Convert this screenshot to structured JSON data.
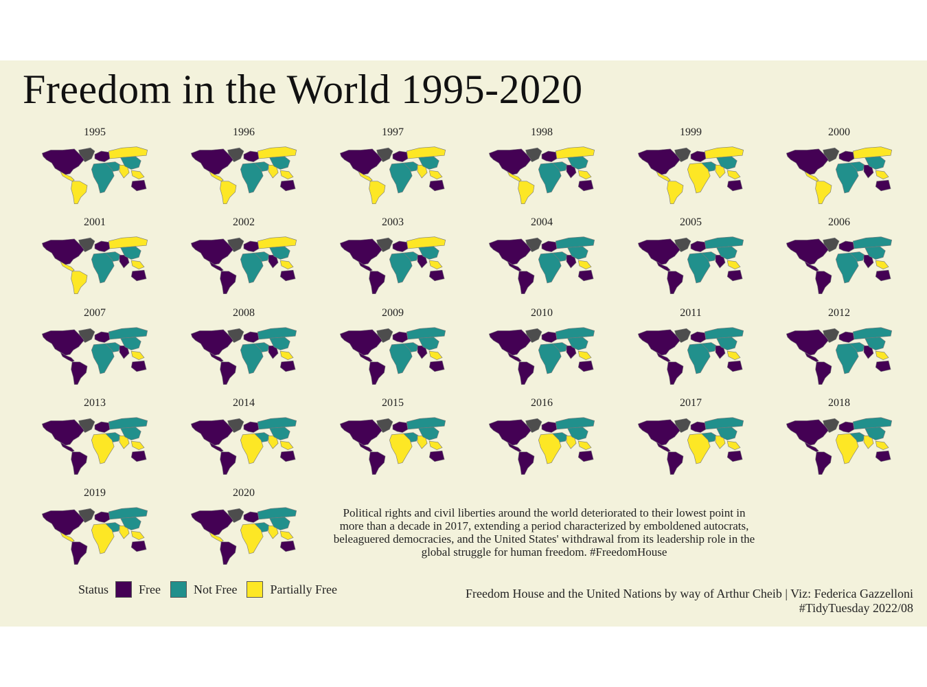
{
  "title": "Freedom in the World 1995-2020",
  "caption": "Political rights and civil liberties around the world deteriorated to their lowest point in more than a decade in 2017, extending a period characterized by emboldened autocrats, beleaguered democracies, and the United States' withdrawal from its leadership role in the global struggle for human freedom. #FreedomHouse",
  "source_line1": "Freedom House and the United Nations by way of Arthur Cheib | Viz: Federica Gazzelloni",
  "source_line2": "#TidyTuesday 2022/08",
  "colors": {
    "Free": "#440154",
    "Not Free": "#21908c",
    "Partially Free": "#fde725",
    "no_data": "#4d4d4d",
    "background": "#f3f2dc",
    "border": "#7a7a7a"
  },
  "legend": {
    "title": "Status",
    "items": [
      "Free",
      "Not Free",
      "Partially Free"
    ]
  },
  "chart_data": {
    "type": "choropleth small multiples",
    "variable": "Status",
    "categories": [
      "Free",
      "Not Free",
      "Partially Free"
    ],
    "panels": [
      {
        "year": "1995",
        "regions": {
          "north_america": "Free",
          "central_america": "Partially Free",
          "south_america": "Partially Free",
          "europe": "Free",
          "russia": "Partially Free",
          "middle_east": "Not Free",
          "africa": "Not Free",
          "south_asia": "Partially Free",
          "east_asia": "Not Free",
          "southeast_asia": "Partially Free",
          "oceania": "Free"
        }
      },
      {
        "year": "1996",
        "regions": {
          "north_america": "Free",
          "central_america": "Partially Free",
          "south_america": "Partially Free",
          "europe": "Free",
          "russia": "Partially Free",
          "middle_east": "Not Free",
          "africa": "Not Free",
          "south_asia": "Partially Free",
          "east_asia": "Not Free",
          "southeast_asia": "Partially Free",
          "oceania": "Free"
        }
      },
      {
        "year": "1997",
        "regions": {
          "north_america": "Free",
          "central_america": "Partially Free",
          "south_america": "Partially Free",
          "europe": "Free",
          "russia": "Partially Free",
          "middle_east": "Not Free",
          "africa": "Not Free",
          "south_asia": "Partially Free",
          "east_asia": "Not Free",
          "southeast_asia": "Partially Free",
          "oceania": "Free"
        }
      },
      {
        "year": "1998",
        "regions": {
          "north_america": "Free",
          "central_america": "Partially Free",
          "south_america": "Partially Free",
          "europe": "Free",
          "russia": "Partially Free",
          "middle_east": "Not Free",
          "africa": "Not Free",
          "south_asia": "Free",
          "east_asia": "Not Free",
          "southeast_asia": "Partially Free",
          "oceania": "Free"
        }
      },
      {
        "year": "1999",
        "regions": {
          "north_america": "Free",
          "central_america": "Partially Free",
          "south_america": "Partially Free",
          "europe": "Free",
          "russia": "Partially Free",
          "middle_east": "Not Free",
          "africa": "Partially Free",
          "south_asia": "Partially Free",
          "east_asia": "Not Free",
          "southeast_asia": "Partially Free",
          "oceania": "Free"
        }
      },
      {
        "year": "2000",
        "regions": {
          "north_america": "Free",
          "central_america": "Partially Free",
          "south_america": "Partially Free",
          "europe": "Free",
          "russia": "Partially Free",
          "middle_east": "Not Free",
          "africa": "Not Free",
          "south_asia": "Free",
          "east_asia": "Not Free",
          "southeast_asia": "Partially Free",
          "oceania": "Free"
        }
      },
      {
        "year": "2001",
        "regions": {
          "north_america": "Free",
          "central_america": "Partially Free",
          "south_america": "Partially Free",
          "europe": "Free",
          "russia": "Partially Free",
          "middle_east": "Not Free",
          "africa": "Not Free",
          "south_asia": "Free",
          "east_asia": "Not Free",
          "southeast_asia": "Partially Free",
          "oceania": "Free"
        }
      },
      {
        "year": "2002",
        "regions": {
          "north_america": "Free",
          "central_america": "Free",
          "south_america": "Free",
          "europe": "Free",
          "russia": "Partially Free",
          "middle_east": "Not Free",
          "africa": "Not Free",
          "south_asia": "Free",
          "east_asia": "Not Free",
          "southeast_asia": "Partially Free",
          "oceania": "Free"
        }
      },
      {
        "year": "2003",
        "regions": {
          "north_america": "Free",
          "central_america": "Free",
          "south_america": "Free",
          "europe": "Free",
          "russia": "Partially Free",
          "middle_east": "Not Free",
          "africa": "Not Free",
          "south_asia": "Free",
          "east_asia": "Not Free",
          "southeast_asia": "Partially Free",
          "oceania": "Free"
        }
      },
      {
        "year": "2004",
        "regions": {
          "north_america": "Free",
          "central_america": "Free",
          "south_america": "Free",
          "europe": "Free",
          "russia": "Not Free",
          "middle_east": "Not Free",
          "africa": "Not Free",
          "south_asia": "Free",
          "east_asia": "Not Free",
          "southeast_asia": "Partially Free",
          "oceania": "Free"
        }
      },
      {
        "year": "2005",
        "regions": {
          "north_america": "Free",
          "central_america": "Free",
          "south_america": "Free",
          "europe": "Free",
          "russia": "Not Free",
          "middle_east": "Not Free",
          "africa": "Not Free",
          "south_asia": "Free",
          "east_asia": "Not Free",
          "southeast_asia": "Partially Free",
          "oceania": "Free"
        }
      },
      {
        "year": "2006",
        "regions": {
          "north_america": "Free",
          "central_america": "Free",
          "south_america": "Free",
          "europe": "Free",
          "russia": "Not Free",
          "middle_east": "Not Free",
          "africa": "Not Free",
          "south_asia": "Free",
          "east_asia": "Not Free",
          "southeast_asia": "Partially Free",
          "oceania": "Free"
        }
      },
      {
        "year": "2007",
        "regions": {
          "north_america": "Free",
          "central_america": "Free",
          "south_america": "Free",
          "europe": "Free",
          "russia": "Not Free",
          "middle_east": "Not Free",
          "africa": "Not Free",
          "south_asia": "Free",
          "east_asia": "Not Free",
          "southeast_asia": "Partially Free",
          "oceania": "Free"
        }
      },
      {
        "year": "2008",
        "regions": {
          "north_america": "Free",
          "central_america": "Free",
          "south_america": "Free",
          "europe": "Free",
          "russia": "Not Free",
          "middle_east": "Not Free",
          "africa": "Not Free",
          "south_asia": "Free",
          "east_asia": "Not Free",
          "southeast_asia": "Partially Free",
          "oceania": "Free"
        }
      },
      {
        "year": "2009",
        "regions": {
          "north_america": "Free",
          "central_america": "Free",
          "south_america": "Free",
          "europe": "Free",
          "russia": "Not Free",
          "middle_east": "Not Free",
          "africa": "Not Free",
          "south_asia": "Free",
          "east_asia": "Not Free",
          "southeast_asia": "Partially Free",
          "oceania": "Free"
        }
      },
      {
        "year": "2010",
        "regions": {
          "north_america": "Free",
          "central_america": "Free",
          "south_america": "Free",
          "europe": "Free",
          "russia": "Not Free",
          "middle_east": "Not Free",
          "africa": "Not Free",
          "south_asia": "Free",
          "east_asia": "Not Free",
          "southeast_asia": "Partially Free",
          "oceania": "Free"
        }
      },
      {
        "year": "2011",
        "regions": {
          "north_america": "Free",
          "central_america": "Free",
          "south_america": "Free",
          "europe": "Free",
          "russia": "Not Free",
          "middle_east": "Not Free",
          "africa": "Not Free",
          "south_asia": "Free",
          "east_asia": "Not Free",
          "southeast_asia": "Partially Free",
          "oceania": "Free"
        }
      },
      {
        "year": "2012",
        "regions": {
          "north_america": "Free",
          "central_america": "Free",
          "south_america": "Free",
          "europe": "Free",
          "russia": "Not Free",
          "middle_east": "Not Free",
          "africa": "Not Free",
          "south_asia": "Free",
          "east_asia": "Not Free",
          "southeast_asia": "Partially Free",
          "oceania": "Free"
        }
      },
      {
        "year": "2013",
        "regions": {
          "north_america": "Free",
          "central_america": "Free",
          "south_america": "Free",
          "europe": "Free",
          "russia": "Not Free",
          "middle_east": "Not Free",
          "africa": "Partially Free",
          "south_asia": "Partially Free",
          "east_asia": "Not Free",
          "southeast_asia": "Partially Free",
          "oceania": "Free"
        }
      },
      {
        "year": "2014",
        "regions": {
          "north_america": "Free",
          "central_america": "Free",
          "south_america": "Free",
          "europe": "Free",
          "russia": "Not Free",
          "middle_east": "Not Free",
          "africa": "Partially Free",
          "south_asia": "Partially Free",
          "east_asia": "Not Free",
          "southeast_asia": "Partially Free",
          "oceania": "Free"
        }
      },
      {
        "year": "2015",
        "regions": {
          "north_america": "Free",
          "central_america": "Free",
          "south_america": "Free",
          "europe": "Free",
          "russia": "Not Free",
          "middle_east": "Not Free",
          "africa": "Partially Free",
          "south_asia": "Partially Free",
          "east_asia": "Not Free",
          "southeast_asia": "Partially Free",
          "oceania": "Free"
        }
      },
      {
        "year": "2016",
        "regions": {
          "north_america": "Free",
          "central_america": "Free",
          "south_america": "Free",
          "europe": "Free",
          "russia": "Not Free",
          "middle_east": "Not Free",
          "africa": "Partially Free",
          "south_asia": "Partially Free",
          "east_asia": "Not Free",
          "southeast_asia": "Partially Free",
          "oceania": "Free"
        }
      },
      {
        "year": "2017",
        "regions": {
          "north_america": "Free",
          "central_america": "Free",
          "south_america": "Free",
          "europe": "Free",
          "russia": "Not Free",
          "middle_east": "Not Free",
          "africa": "Partially Free",
          "south_asia": "Partially Free",
          "east_asia": "Not Free",
          "southeast_asia": "Partially Free",
          "oceania": "Free"
        }
      },
      {
        "year": "2018",
        "regions": {
          "north_america": "Free",
          "central_america": "Free",
          "south_america": "Free",
          "europe": "Free",
          "russia": "Not Free",
          "middle_east": "Not Free",
          "africa": "Partially Free",
          "south_asia": "Partially Free",
          "east_asia": "Not Free",
          "southeast_asia": "Partially Free",
          "oceania": "Free"
        }
      },
      {
        "year": "2019",
        "regions": {
          "north_america": "Free",
          "central_america": "Partially Free",
          "south_america": "Free",
          "europe": "Free",
          "russia": "Not Free",
          "middle_east": "Not Free",
          "africa": "Partially Free",
          "south_asia": "Partially Free",
          "east_asia": "Not Free",
          "southeast_asia": "Partially Free",
          "oceania": "Free"
        }
      },
      {
        "year": "2020",
        "regions": {
          "north_america": "Free",
          "central_america": "Partially Free",
          "south_america": "Free",
          "europe": "Free",
          "russia": "Not Free",
          "middle_east": "Not Free",
          "africa": "Partially Free",
          "south_asia": "Partially Free",
          "east_asia": "Not Free",
          "southeast_asia": "Partially Free",
          "oceania": "Free"
        }
      }
    ]
  }
}
